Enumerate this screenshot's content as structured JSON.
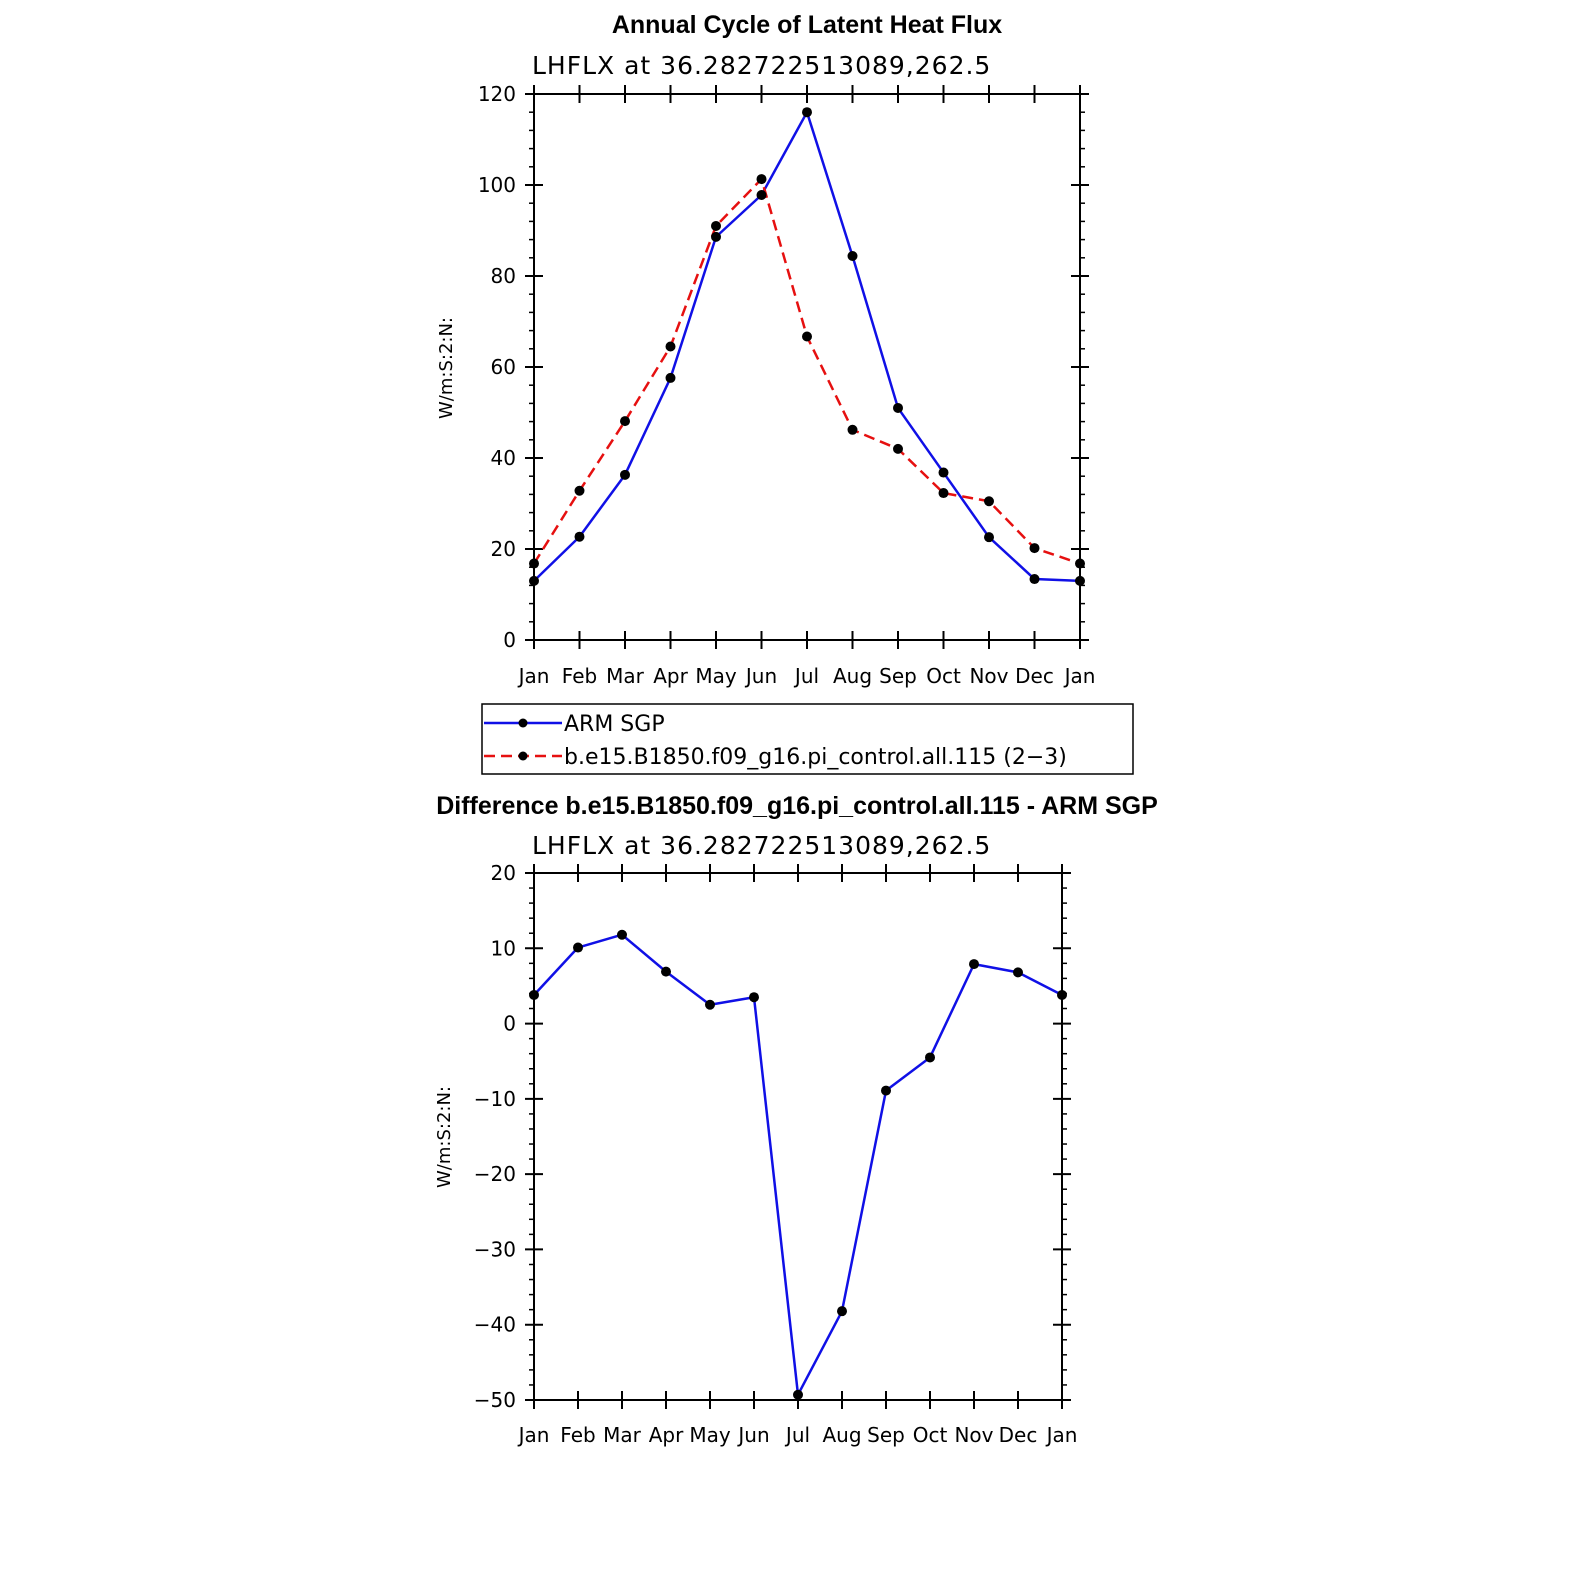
{
  "colors": {
    "obs": "#1010e6",
    "model": "#e61010",
    "marker": "#000000",
    "axis": "#000000"
  },
  "chart_data": [
    {
      "type": "line",
      "title": "Annual Cycle of Latent Heat Flux",
      "subtitle": "LHFLX at 36.282722513089,262.5",
      "ylabel": "W/m:S:2:N:",
      "categories": [
        "Jan",
        "Feb",
        "Mar",
        "Apr",
        "May",
        "Jun",
        "Jul",
        "Aug",
        "Sep",
        "Oct",
        "Nov",
        "Dec",
        "Jan"
      ],
      "ylim": [
        0,
        120
      ],
      "yticks": [
        0,
        20,
        40,
        60,
        80,
        100,
        120
      ],
      "series": [
        {
          "name": "ARM SGP",
          "style": "solid",
          "color": "#1010e6",
          "values": [
            13,
            22.7,
            36.3,
            57.6,
            88.6,
            97.8,
            116,
            84.4,
            51,
            36.8,
            22.6,
            13.4,
            13
          ]
        },
        {
          "name": "b.e15.B1850.f09_g16.pi_control.all.115 (2−3)",
          "style": "dashed",
          "color": "#e61010",
          "values": [
            16.8,
            32.8,
            48.1,
            64.5,
            91,
            101.3,
            66.7,
            46.2,
            42,
            32.3,
            30.5,
            20.2,
            16.8
          ]
        }
      ],
      "legend": {
        "placement": "below",
        "entries": [
          "ARM SGP",
          "b.e15.B1850.f09_g16.pi_control.all.115 (2−3)"
        ]
      }
    },
    {
      "type": "line",
      "title": "Difference b.e15.B1850.f09_g16.pi_control.all.115 - ARM SGP",
      "subtitle": "LHFLX at 36.282722513089,262.5",
      "ylabel": "W/m:S:2:N:",
      "categories": [
        "Jan",
        "Feb",
        "Mar",
        "Apr",
        "May",
        "Jun",
        "Jul",
        "Aug",
        "Sep",
        "Oct",
        "Nov",
        "Dec",
        "Jan"
      ],
      "ylim": [
        -50,
        20
      ],
      "yticks": [
        -50,
        -40,
        -30,
        -20,
        -10,
        0,
        10,
        20
      ],
      "ytick_labels": [
        "−50",
        "−40",
        "−30",
        "−20",
        "−10",
        "0",
        "10",
        "20"
      ],
      "series": [
        {
          "name": "Difference",
          "style": "solid",
          "color": "#1010e6",
          "values": [
            3.8,
            10.1,
            11.8,
            6.9,
            2.5,
            3.5,
            -49.3,
            -38.2,
            -8.9,
            -4.5,
            7.9,
            6.8,
            3.8
          ]
        }
      ]
    }
  ]
}
